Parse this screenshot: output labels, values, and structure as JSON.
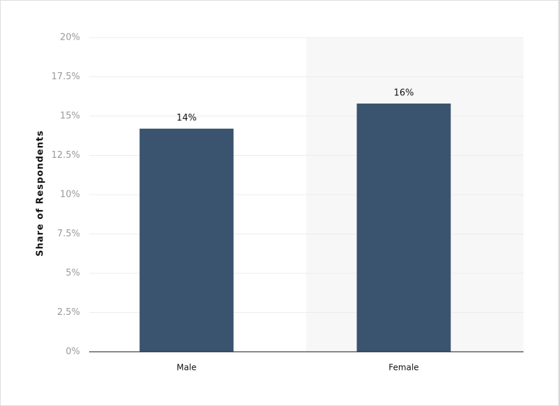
{
  "chart_data": {
    "type": "bar",
    "y_axis_label": "Share of Respondents",
    "categories": [
      "Male",
      "Female"
    ],
    "values": [
      14.2,
      15.8
    ],
    "value_labels": [
      "14%",
      "16%"
    ],
    "color": "#3a536e",
    "ylim": [
      0,
      20
    ],
    "yticks": [
      {
        "value": 0,
        "label": "0%"
      },
      {
        "value": 2.5,
        "label": "2.5%"
      },
      {
        "value": 5,
        "label": "5%"
      },
      {
        "value": 7.5,
        "label": "7.5%"
      },
      {
        "value": 10,
        "label": "10%"
      },
      {
        "value": 12.5,
        "label": "12.5%"
      },
      {
        "value": 15,
        "label": "15%"
      },
      {
        "value": 17.5,
        "label": "17.5%"
      },
      {
        "value": 20,
        "label": "20%"
      }
    ],
    "grid": true
  }
}
